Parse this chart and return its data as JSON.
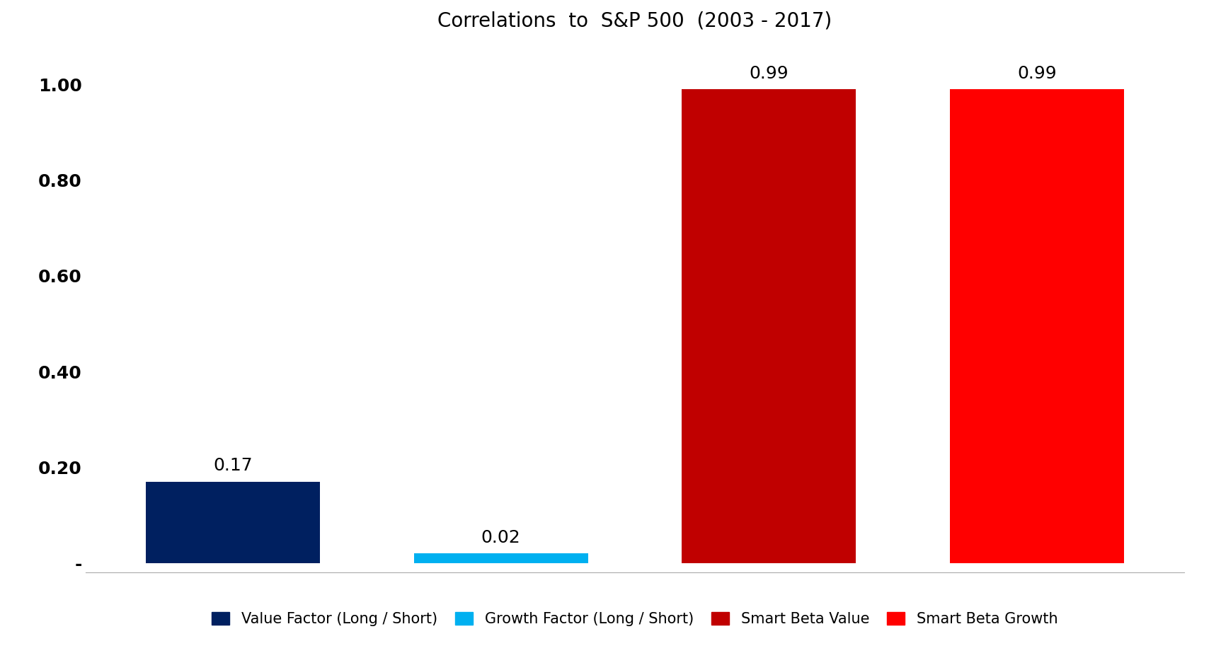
{
  "title": "Correlations  to  S&P 500  (2003 - 2017)",
  "categories": [
    "Value Factor (Long / Short)",
    "Growth Factor (Long / Short)",
    "Smart Beta Value",
    "Smart Beta Growth"
  ],
  "values": [
    0.17,
    0.02,
    0.99,
    0.99
  ],
  "colors": [
    "#002060",
    "#00B0F0",
    "#C00000",
    "#FF0000"
  ],
  "ylim": [
    -0.02,
    1.08
  ],
  "yticks": [
    0.0,
    0.2,
    0.4,
    0.6,
    0.8,
    1.0
  ],
  "ytick_labels": [
    "-",
    "0.20",
    "0.40",
    "0.60",
    "0.80",
    "1.00"
  ],
  "bar_labels": [
    "0.17",
    "0.02",
    "0.99",
    "0.99"
  ],
  "label_offsets": [
    0.015,
    0.015,
    0.015,
    0.015
  ],
  "legend_labels": [
    "Value Factor (Long / Short)",
    "Growth Factor (Long / Short)",
    "Smart Beta Value",
    "Smart Beta Growth"
  ],
  "legend_colors": [
    "#002060",
    "#00B0F0",
    "#C00000",
    "#FF0000"
  ],
  "title_fontsize": 20,
  "tick_fontsize": 18,
  "label_fontsize": 18,
  "legend_fontsize": 15,
  "bar_width": 0.65,
  "background_color": "#FFFFFF",
  "xlim": [
    -0.55,
    3.55
  ]
}
